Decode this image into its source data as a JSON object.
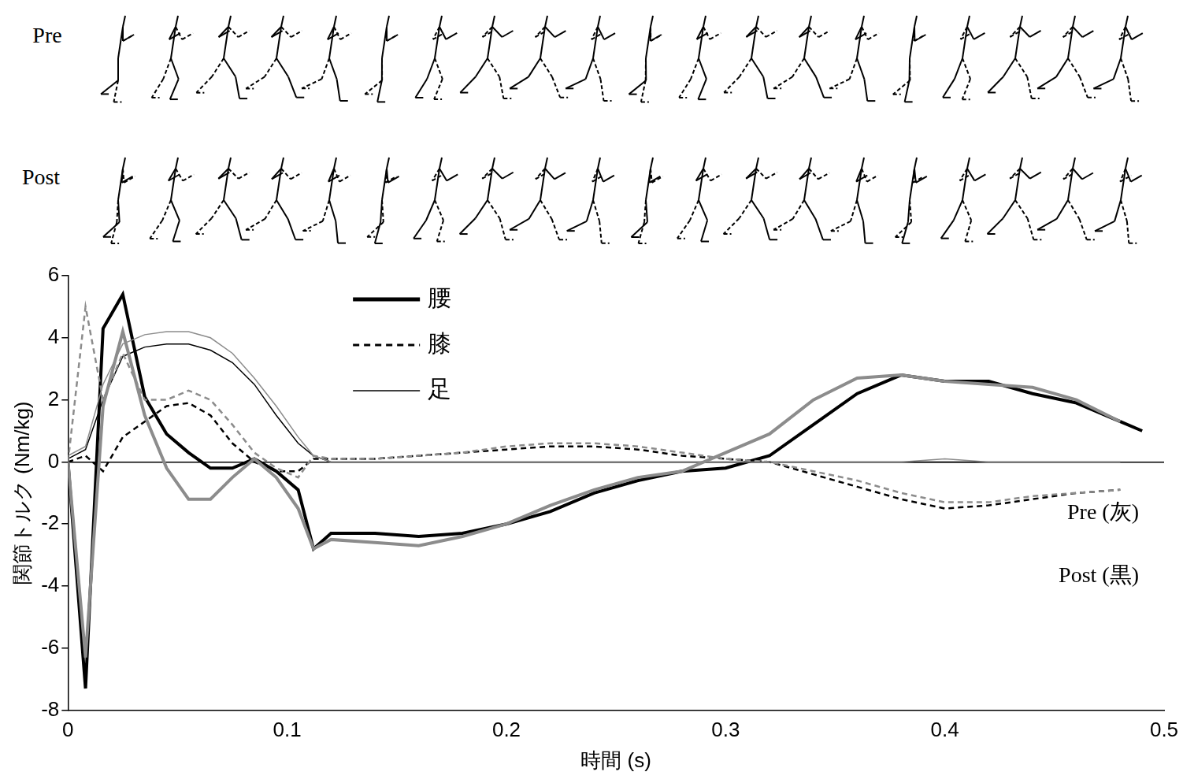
{
  "chart_data": {
    "type": "line",
    "figure_rows": [
      "Pre",
      "Post"
    ],
    "x_label": "時間 (s)",
    "y_label": "関節トルク (Nm/kg)",
    "xlim": [
      0,
      0.5
    ],
    "xticks": [
      0,
      0.1,
      0.2,
      0.3,
      0.4,
      0.5
    ],
    "ylim": [
      -8,
      6
    ],
    "yticks": [
      -8,
      -6,
      -4,
      -2,
      0,
      2,
      4,
      6
    ],
    "grid": false,
    "legend": "top",
    "x": [
      0,
      0.008,
      0.016,
      0.025,
      0.035,
      0.045,
      0.055,
      0.065,
      0.075,
      0.085,
      0.095,
      0.105,
      0.112,
      0.12,
      0.14,
      0.16,
      0.18,
      0.2,
      0.22,
      0.24,
      0.26,
      0.28,
      0.3,
      0.32,
      0.34,
      0.36,
      0.38,
      0.4,
      0.42,
      0.44,
      0.46,
      0.48,
      0.49
    ],
    "groups": [
      {
        "name": "Pre (灰)",
        "series": [
          {
            "name": "腰",
            "color": "#8c8c8c",
            "line_style": "solid",
            "values": [
              0,
              -6.3,
              1.8,
              4.2,
              1.5,
              -0.2,
              -1.2,
              -1.2,
              -0.5,
              0.1,
              -0.5,
              -1.5,
              -2.8,
              -2.5,
              -2.6,
              -2.7,
              -2.4,
              -2.0,
              -1.4,
              -0.9,
              -0.5,
              -0.3,
              0.3,
              0.9,
              2.0,
              2.7,
              2.8,
              2.6,
              2.5,
              2.4,
              2.0,
              1.3,
              null
            ]
          },
          {
            "name": "膝",
            "color": "#8c8c8c",
            "line_style": "dashed",
            "values": [
              0,
              5.0,
              2.0,
              3.5,
              2.0,
              2.0,
              2.3,
              2.0,
              1.2,
              0.3,
              -0.2,
              -0.5,
              0.2,
              0.1,
              0.1,
              0.2,
              0.3,
              0.5,
              0.6,
              0.6,
              0.5,
              0.3,
              0.1,
              0.0,
              -0.3,
              -0.6,
              -1.0,
              -1.3,
              -1.3,
              -1.1,
              -1.0,
              -0.9,
              null
            ]
          },
          {
            "name": "足",
            "color": "#8c8c8c",
            "line_style": "thin",
            "values": [
              0.2,
              0.5,
              2.5,
              3.8,
              4.1,
              4.2,
              4.2,
              4.0,
              3.5,
              2.7,
              1.8,
              0.8,
              0.2,
              0.0,
              0.0,
              0.0,
              0.0,
              0.0,
              0.0,
              0.0,
              0.0,
              0.0,
              0.0,
              0.0,
              0.0,
              0.0,
              0.0,
              0.1,
              0.0,
              0.0,
              0.0,
              0.0,
              null
            ]
          }
        ]
      },
      {
        "name": "Post (黒)",
        "series": [
          {
            "name": "腰",
            "color": "#000000",
            "line_style": "solid",
            "values": [
              0,
              -7.3,
              4.3,
              5.4,
              2.1,
              0.9,
              0.3,
              -0.2,
              -0.2,
              0.1,
              -0.3,
              -0.9,
              -2.8,
              -2.3,
              -2.3,
              -2.4,
              -2.3,
              -2.0,
              -1.6,
              -1.0,
              -0.6,
              -0.3,
              -0.2,
              0.2,
              1.2,
              2.2,
              2.8,
              2.6,
              2.6,
              2.2,
              1.9,
              1.3,
              1.0
            ]
          },
          {
            "name": "膝",
            "color": "#000000",
            "line_style": "dashed",
            "values": [
              0,
              0.2,
              -0.3,
              0.8,
              1.3,
              1.8,
              1.9,
              1.5,
              0.6,
              0.0,
              -0.3,
              -0.3,
              0.1,
              0.1,
              0.1,
              0.2,
              0.3,
              0.4,
              0.5,
              0.5,
              0.4,
              0.2,
              0.1,
              0.0,
              -0.4,
              -0.8,
              -1.2,
              -1.5,
              -1.4,
              -1.2,
              -1.0,
              -0.9,
              null
            ]
          },
          {
            "name": "足",
            "color": "#000000",
            "line_style": "thin",
            "values": [
              0.1,
              0.4,
              2.0,
              3.4,
              3.7,
              3.8,
              3.8,
              3.6,
              3.2,
              2.5,
              1.5,
              0.6,
              0.2,
              0.0,
              0.0,
              0.0,
              0.0,
              0.0,
              0.0,
              0.0,
              0.0,
              0.0,
              0.0,
              0.0,
              0.0,
              0.0,
              0.0,
              0.0,
              0.0,
              0.0,
              0.0,
              0.0,
              null
            ]
          }
        ]
      }
    ]
  }
}
